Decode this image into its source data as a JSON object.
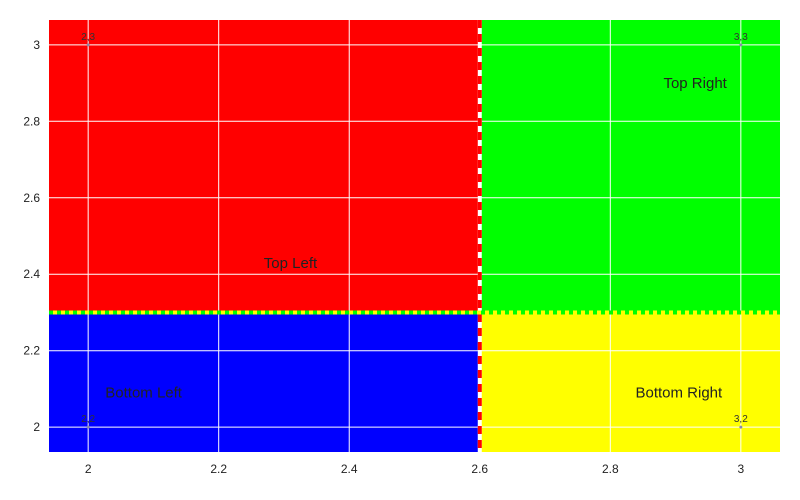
{
  "chart_data": {
    "type": "heatmap",
    "title": "",
    "xlabel": "",
    "ylabel": "",
    "xlim": [
      1.94,
      3.06
    ],
    "ylim": [
      1.935,
      3.065
    ],
    "grid": true,
    "x_ticks": [
      "2",
      "2.2",
      "2.4",
      "2.6",
      "2.8",
      "3"
    ],
    "y_ticks": [
      "2",
      "2.2",
      "2.4",
      "2.6",
      "2.8",
      "3"
    ],
    "regions": [
      {
        "name": "Top Left",
        "label": "Top Left",
        "x": [
          1.94,
          2.6
        ],
        "y": [
          2.3,
          3.065
        ],
        "color": "#ff0000",
        "label_pos": [
          2.31,
          2.43
        ]
      },
      {
        "name": "Top Right",
        "label": "Top Right",
        "x": [
          2.6,
          3.06
        ],
        "y": [
          2.3,
          3.065
        ],
        "color": "#00ff00",
        "label_pos": [
          2.93,
          2.9
        ]
      },
      {
        "name": "Bottom Left",
        "label": "Bottom Left",
        "x": [
          1.94,
          2.6
        ],
        "y": [
          1.935,
          2.3
        ],
        "color": "#0000ff",
        "label_pos": [
          2.085,
          2.09
        ]
      },
      {
        "name": "Bottom Right",
        "label": "Bottom Right",
        "x": [
          2.6,
          3.06
        ],
        "y": [
          1.935,
          2.3
        ],
        "color": "#ffff00",
        "label_pos": [
          2.905,
          2.09
        ]
      }
    ],
    "boundaries": [
      {
        "orientation": "vertical",
        "value": 2.6,
        "colors": [
          "#ff0000",
          "#ffffff"
        ]
      },
      {
        "orientation": "horizontal",
        "value": 2.3,
        "colors": [
          "#00ff00",
          "#ffff00"
        ]
      }
    ],
    "points": [
      {
        "x": 2,
        "y": 3,
        "label": "2,3"
      },
      {
        "x": 3,
        "y": 3,
        "label": "3,3"
      },
      {
        "x": 2,
        "y": 2,
        "label": "2,2"
      },
      {
        "x": 3,
        "y": 2,
        "label": "3,2"
      }
    ]
  }
}
